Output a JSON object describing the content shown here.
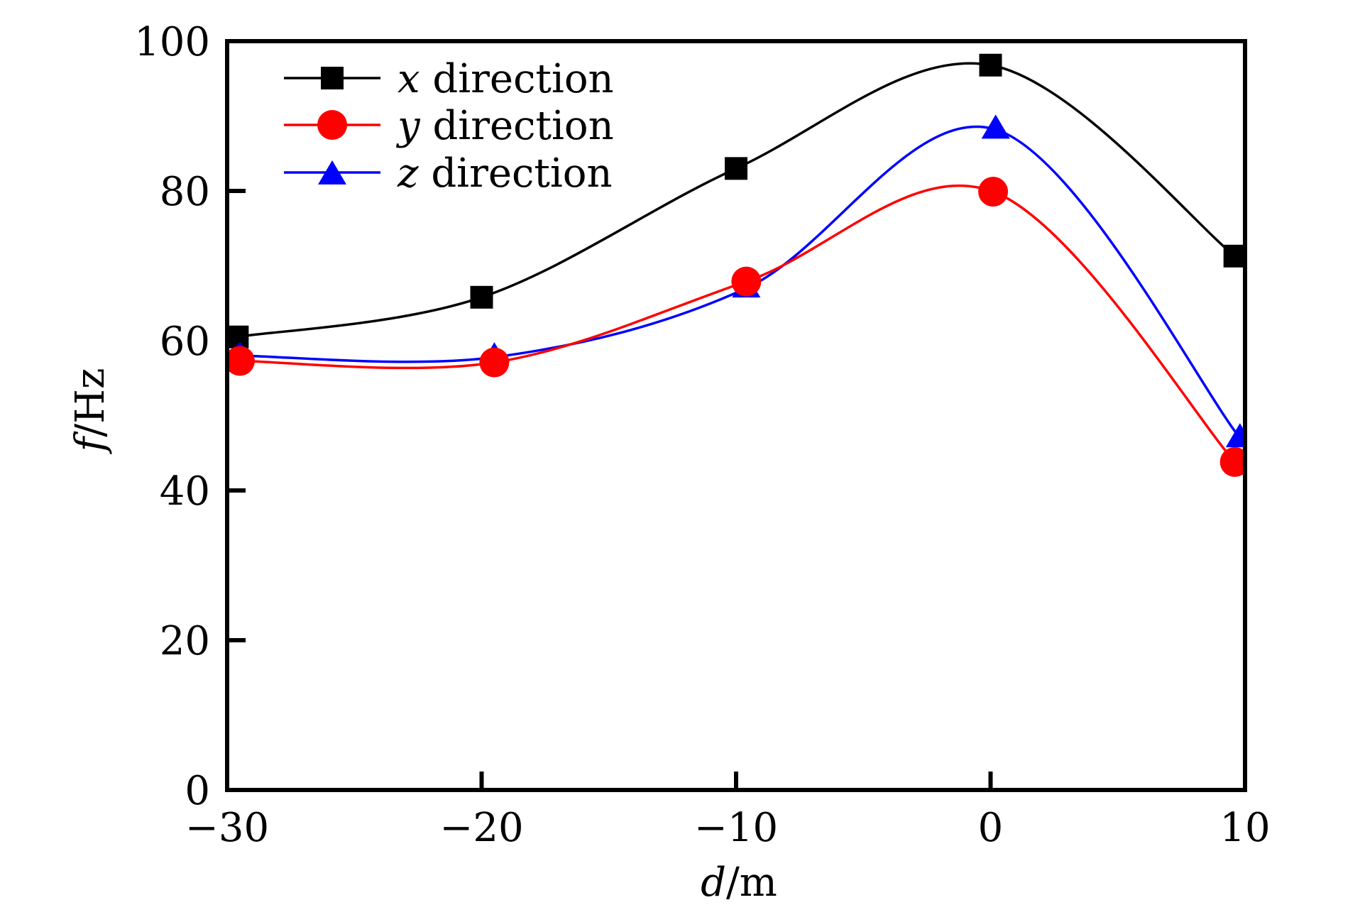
{
  "chart_data": {
    "type": "line",
    "xlabel_var": "d",
    "xlabel_unit": "/m",
    "ylabel_var": "f",
    "ylabel_unit": "/Hz",
    "xlim": [
      -30,
      10
    ],
    "ylim": [
      0,
      100
    ],
    "xticks": [
      -30,
      -20,
      -10,
      0,
      10
    ],
    "xtick_labels": [
      "−30",
      "−20",
      "−10",
      "0",
      "10"
    ],
    "yticks": [
      0,
      20,
      40,
      60,
      80,
      100
    ],
    "ytick_labels": [
      "0",
      "20",
      "40",
      "60",
      "80",
      "100"
    ],
    "grid": false,
    "legend_placement": "top-left",
    "series": [
      {
        "var": "x",
        "name_suffix": " direction",
        "color": "#000000",
        "marker": "square",
        "x": [
          -29.6,
          -20,
          -10,
          0,
          9.6
        ],
        "y": [
          60.5,
          65.8,
          83.0,
          96.8,
          71.3
        ]
      },
      {
        "var": "y",
        "name_suffix": " direction",
        "color": "#ff0000",
        "marker": "circle",
        "x": [
          -29.5,
          -19.5,
          -9.6,
          0.1,
          9.6
        ],
        "y": [
          57.3,
          57.1,
          67.9,
          79.9,
          43.8
        ]
      },
      {
        "var": "z",
        "name_suffix": " direction",
        "color": "#0000ff",
        "marker": "triangle",
        "x": [
          -29.5,
          -19.5,
          -9.6,
          0.2,
          9.8
        ],
        "y": [
          58.0,
          57.8,
          67.0,
          88.2,
          47.0
        ]
      }
    ]
  }
}
